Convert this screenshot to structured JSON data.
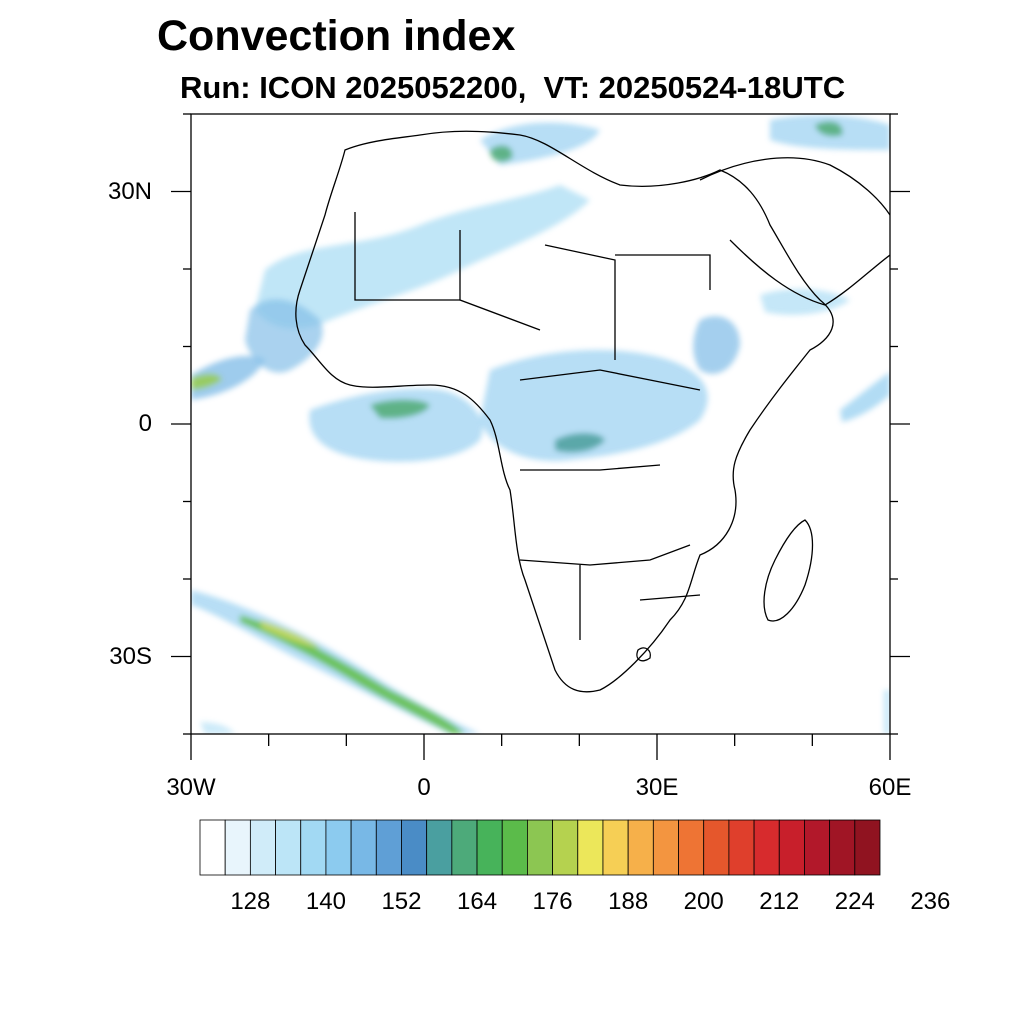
{
  "title": "Convection index",
  "subtitle": "Run: ICON 2025052200,  VT: 20250524-18UTC",
  "map": {
    "lon_range": [
      -30,
      60
    ],
    "lat_range": [
      -40,
      40
    ],
    "x_ticks": [
      {
        "lon": -30,
        "label": "30W"
      },
      {
        "lon": 0,
        "label": "0"
      },
      {
        "lon": 30,
        "label": "30E"
      },
      {
        "lon": 60,
        "label": "60E"
      }
    ],
    "y_ticks": [
      {
        "lat": 30,
        "label": "30N"
      },
      {
        "lat": 0,
        "label": "0"
      },
      {
        "lat": -30,
        "label": "30S"
      }
    ],
    "ocean_color": "#ffffff",
    "coast_color": "#000000"
  },
  "colorbar": {
    "colors": [
      "#ffffff",
      "#e8f5fc",
      "#d0ecf9",
      "#bce5f7",
      "#a2d9f3",
      "#8ccbef",
      "#78b8e6",
      "#5f9fd6",
      "#4a8cc6",
      "#4a9fa0",
      "#4daa7a",
      "#47b35a",
      "#5bbb4a",
      "#8cc652",
      "#b5d24f",
      "#ece75a",
      "#f6cf55",
      "#f6b04a",
      "#f39540",
      "#ee7434",
      "#e5572c",
      "#df3f2c",
      "#d72b2d",
      "#c81f2b",
      "#b2182a",
      "#a01525",
      "#901320"
    ],
    "labels": [
      "128",
      "140",
      "152",
      "164",
      "176",
      "188",
      "200",
      "212",
      "224",
      "236"
    ]
  }
}
